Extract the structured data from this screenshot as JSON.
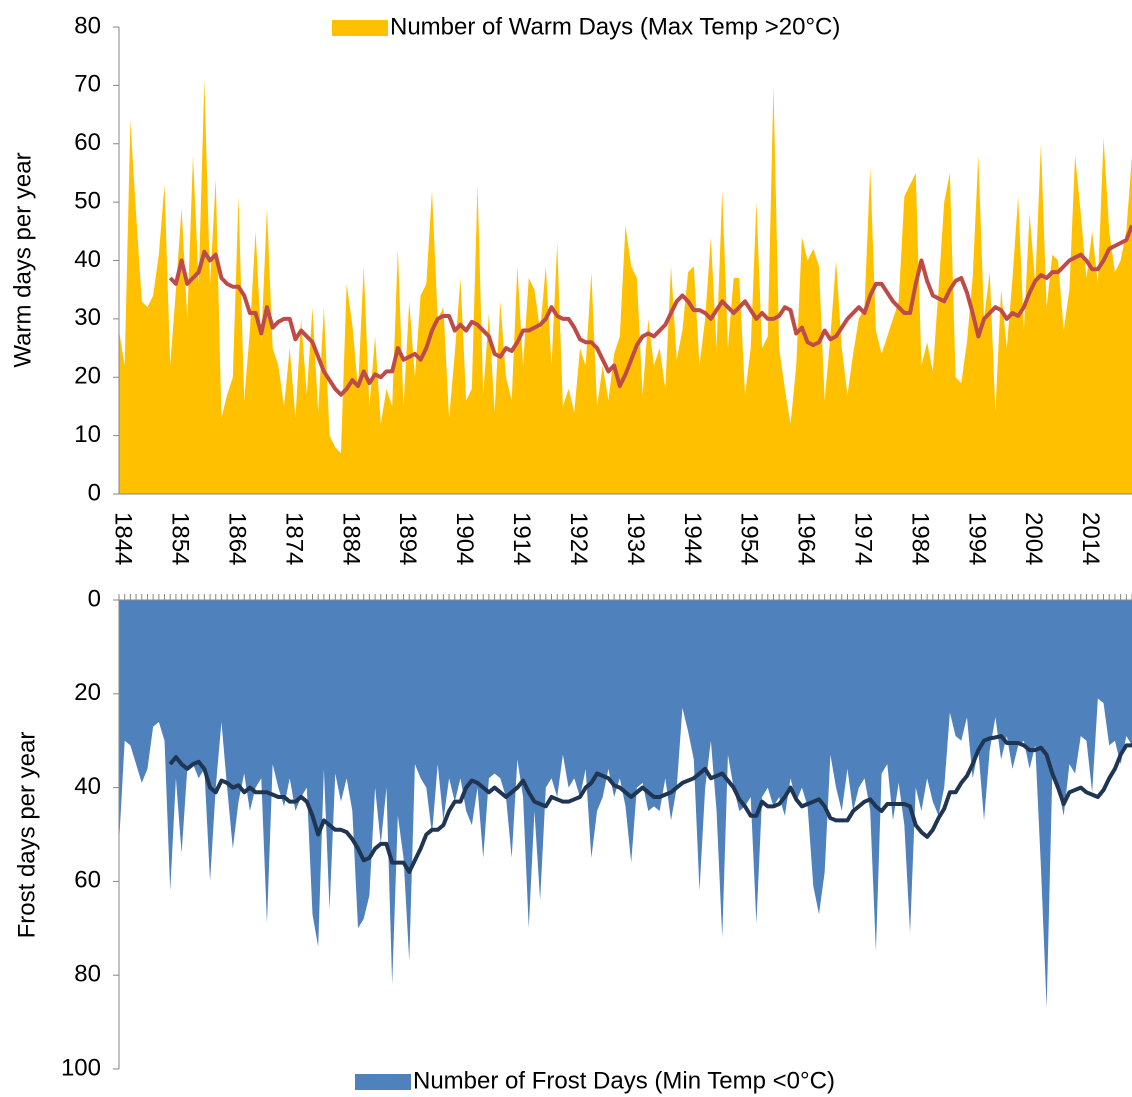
{
  "chart_data": [
    {
      "type": "area",
      "y_label": "Warm days per year",
      "legend": "top",
      "x": [
        1844,
        1845,
        1846,
        1847,
        1848,
        1849,
        1850,
        1851,
        1852,
        1853,
        1854,
        1855,
        1856,
        1857,
        1858,
        1859,
        1860,
        1861,
        1862,
        1863,
        1864,
        1865,
        1866,
        1867,
        1868,
        1869,
        1870,
        1871,
        1872,
        1873,
        1874,
        1875,
        1876,
        1877,
        1878,
        1879,
        1880,
        1881,
        1882,
        1883,
        1884,
        1885,
        1886,
        1887,
        1888,
        1889,
        1890,
        1891,
        1892,
        1893,
        1894,
        1895,
        1896,
        1897,
        1898,
        1899,
        1900,
        1901,
        1902,
        1903,
        1904,
        1905,
        1906,
        1907,
        1908,
        1909,
        1910,
        1911,
        1912,
        1913,
        1914,
        1915,
        1916,
        1917,
        1918,
        1919,
        1920,
        1921,
        1922,
        1923,
        1924,
        1925,
        1926,
        1927,
        1928,
        1929,
        1930,
        1931,
        1932,
        1933,
        1934,
        1935,
        1936,
        1937,
        1938,
        1939,
        1940,
        1941,
        1942,
        1943,
        1944,
        1945,
        1946,
        1947,
        1948,
        1949,
        1950,
        1951,
        1952,
        1953,
        1954,
        1955,
        1956,
        1957,
        1958,
        1959,
        1960,
        1961,
        1962,
        1963,
        1964,
        1965,
        1966,
        1967,
        1968,
        1969,
        1970,
        1971,
        1972,
        1973,
        1974,
        1975,
        1976,
        1977,
        1978,
        1979,
        1980,
        1981,
        1982,
        1983,
        1984,
        1985,
        1986,
        1987,
        1988,
        1989,
        1990,
        1991,
        1992,
        1993,
        1994,
        1995,
        1996,
        1997,
        1998,
        1999,
        2000,
        2001,
        2002,
        2003,
        2004,
        2005,
        2006,
        2007,
        2008,
        2009,
        2010,
        2011,
        2012,
        2013,
        2014,
        2015,
        2016,
        2017,
        2018,
        2019,
        2020,
        2021,
        2022
      ],
      "xlim": [
        1844,
        2022
      ],
      "xticks": [
        1844,
        1854,
        1864,
        1874,
        1884,
        1894,
        1904,
        1914,
        1924,
        1934,
        1944,
        1954,
        1964,
        1974,
        1984,
        1994,
        2004,
        2014
      ],
      "ylim": [
        0,
        80
      ],
      "yticks": [
        0,
        10,
        20,
        30,
        40,
        50,
        60,
        70,
        80
      ],
      "series": [
        {
          "name": "Number of Warm Days (Max Temp >20°C)",
          "type": "area",
          "color": "#ffc000",
          "values": [
            28,
            22,
            64,
            48,
            33,
            32,
            34,
            41,
            53,
            22,
            35,
            49,
            30,
            58,
            36,
            71,
            36,
            54,
            13,
            17,
            20,
            51,
            16,
            28,
            45,
            26,
            49,
            25,
            22,
            15,
            25,
            13,
            30,
            17,
            32,
            14,
            32,
            10,
            8,
            7,
            36,
            29,
            18,
            39,
            15,
            27,
            12,
            18,
            15,
            42,
            15,
            33,
            20,
            34,
            36,
            52,
            30,
            32,
            13,
            24,
            37,
            16,
            18,
            53,
            17,
            31,
            14,
            33,
            20,
            16,
            39,
            22,
            37,
            35,
            28,
            39,
            22,
            43,
            15,
            18,
            14,
            25,
            22,
            38,
            15,
            22,
            16,
            24,
            27,
            46,
            39,
            37,
            17,
            30,
            22,
            25,
            18,
            39,
            23,
            28,
            38,
            39,
            22,
            30,
            44,
            25,
            52,
            25,
            37,
            37,
            17,
            25,
            50,
            25,
            27,
            70,
            25,
            18,
            12,
            22,
            44,
            40,
            42,
            39,
            16,
            27,
            40,
            25,
            17,
            24,
            30,
            32,
            56,
            28,
            24,
            27,
            30,
            33,
            51,
            53,
            55,
            22,
            26,
            21,
            35,
            50,
            55,
            20,
            19,
            26,
            37,
            58,
            30,
            38,
            14,
            35,
            25,
            37,
            51,
            28,
            48,
            36,
            60,
            32,
            41,
            40,
            28,
            35,
            58,
            48,
            37,
            45,
            36,
            61,
            45,
            38,
            40,
            45,
            58
          ]
        },
        {
          "type": "line",
          "color": "#be4b48",
          "values": [
            null,
            null,
            null,
            null,
            null,
            null,
            null,
            null,
            null,
            37,
            36,
            40,
            36,
            37,
            38,
            41.5,
            40,
            41,
            37,
            36,
            35.5,
            35.5,
            34,
            31,
            31,
            27.5,
            32,
            28.5,
            29.5,
            30,
            30,
            26.5,
            28,
            27,
            26,
            23.5,
            21,
            19.5,
            18,
            17,
            18,
            19.5,
            18.5,
            21,
            19,
            20.5,
            20,
            21,
            21,
            25,
            23,
            23.5,
            24,
            23,
            25,
            28,
            30,
            30.5,
            30.5,
            28,
            29,
            28,
            29.5,
            29,
            28,
            27,
            24,
            23.5,
            25,
            24.5,
            26,
            28,
            28,
            28.5,
            29,
            30,
            32,
            30.5,
            30,
            30,
            28.5,
            26.5,
            26,
            26,
            25,
            23,
            21,
            22,
            18.5,
            20.5,
            23,
            25.5,
            27,
            27.5,
            27,
            28,
            29,
            31,
            33,
            34,
            33,
            31.5,
            31.5,
            31,
            30,
            31.5,
            33,
            32,
            31,
            32,
            33,
            31.5,
            30,
            31,
            30,
            30,
            30.5,
            32,
            31.5,
            27.5,
            28.5,
            26,
            25.5,
            26,
            28,
            26.5,
            27,
            28.5,
            30,
            31,
            32,
            31,
            34,
            36,
            36,
            34.5,
            33,
            32,
            31,
            31,
            36,
            40,
            36.5,
            34,
            33.5,
            33,
            35,
            36.5,
            37,
            34.5,
            31,
            27,
            30,
            31,
            32,
            31.5,
            30,
            31,
            30.5,
            32,
            34.5,
            36.5,
            37.5,
            37,
            38,
            38,
            39,
            40,
            40.5,
            41,
            40,
            38.5,
            38.5,
            40,
            42,
            42.5,
            43,
            43.5,
            46
          ]
        }
      ]
    },
    {
      "type": "area",
      "y_label": "Frost days per year",
      "legend": "bottom",
      "invert_y": true,
      "x_minor_ticks": true,
      "x": [
        1844,
        1845,
        1846,
        1847,
        1848,
        1849,
        1850,
        1851,
        1852,
        1853,
        1854,
        1855,
        1856,
        1857,
        1858,
        1859,
        1860,
        1861,
        1862,
        1863,
        1864,
        1865,
        1866,
        1867,
        1868,
        1869,
        1870,
        1871,
        1872,
        1873,
        1874,
        1875,
        1876,
        1877,
        1878,
        1879,
        1880,
        1881,
        1882,
        1883,
        1884,
        1885,
        1886,
        1887,
        1888,
        1889,
        1890,
        1891,
        1892,
        1893,
        1894,
        1895,
        1896,
        1897,
        1898,
        1899,
        1900,
        1901,
        1902,
        1903,
        1904,
        1905,
        1906,
        1907,
        1908,
        1909,
        1910,
        1911,
        1912,
        1913,
        1914,
        1915,
        1916,
        1917,
        1918,
        1919,
        1920,
        1921,
        1922,
        1923,
        1924,
        1925,
        1926,
        1927,
        1928,
        1929,
        1930,
        1931,
        1932,
        1933,
        1934,
        1935,
        1936,
        1937,
        1938,
        1939,
        1940,
        1941,
        1942,
        1943,
        1944,
        1945,
        1946,
        1947,
        1948,
        1949,
        1950,
        1951,
        1952,
        1953,
        1954,
        1955,
        1956,
        1957,
        1958,
        1959,
        1960,
        1961,
        1962,
        1963,
        1964,
        1965,
        1966,
        1967,
        1968,
        1969,
        1970,
        1971,
        1972,
        1973,
        1974,
        1975,
        1976,
        1977,
        1978,
        1979,
        1980,
        1981,
        1982,
        1983,
        1984,
        1985,
        1986,
        1987,
        1988,
        1989,
        1990,
        1991,
        1992,
        1993,
        1994,
        1995,
        1996,
        1997,
        1998,
        1999,
        2000,
        2001,
        2002,
        2003,
        2004,
        2005,
        2006,
        2007,
        2008,
        2009,
        2010,
        2011,
        2012,
        2013,
        2014,
        2015,
        2016,
        2017,
        2018,
        2019,
        2020,
        2021,
        2022
      ],
      "xlim": [
        1844,
        2022
      ],
      "ylim": [
        0,
        100
      ],
      "yticks": [
        0,
        20,
        40,
        60,
        80,
        100
      ],
      "series": [
        {
          "name": "Number of Frost Days (Min Temp <0°C)",
          "type": "area",
          "color": "#4f81bd",
          "values": [
            52,
            30,
            31,
            35,
            39,
            36,
            27,
            26,
            30,
            62,
            38,
            54,
            36,
            35,
            38,
            36,
            60,
            40,
            26,
            40,
            53,
            43,
            37,
            45,
            40,
            38,
            69,
            35,
            40,
            44,
            38,
            45,
            42,
            40,
            67,
            74,
            36,
            66,
            37,
            43,
            38,
            45,
            70,
            68,
            63,
            40,
            52,
            40,
            82,
            46,
            55,
            77,
            35,
            38,
            40,
            50,
            35,
            47,
            38,
            43,
            38,
            45,
            48,
            40,
            55,
            38,
            37,
            38,
            42,
            55,
            34,
            42,
            70,
            45,
            64,
            40,
            38,
            42,
            33,
            40,
            38,
            42,
            36,
            55,
            45,
            42,
            36,
            42,
            38,
            44,
            56,
            40,
            39,
            45,
            44,
            45,
            38,
            47,
            40,
            23,
            28,
            34,
            62,
            40,
            30,
            45,
            72,
            33,
            40,
            45,
            44,
            42,
            69,
            42,
            40,
            44,
            42,
            46,
            38,
            43,
            40,
            44,
            61,
            67,
            58,
            33,
            40,
            45,
            36,
            45,
            40,
            38,
            45,
            75,
            37,
            35,
            47,
            39,
            48,
            71,
            40,
            45,
            38,
            43,
            46,
            40,
            24,
            29,
            30,
            25,
            38,
            32,
            47,
            32,
            25,
            34,
            29,
            36,
            31,
            30,
            36,
            31,
            57,
            87,
            37,
            40,
            46,
            35,
            37,
            29,
            30,
            41,
            21,
            22,
            31,
            30,
            35,
            29,
            31
          ]
        },
        {
          "type": "line",
          "color": "#1f3552",
          "values": [
            null,
            null,
            null,
            null,
            null,
            null,
            null,
            null,
            null,
            35,
            33.5,
            35,
            36,
            35,
            34.5,
            36,
            40,
            41,
            38.5,
            39,
            40,
            39.5,
            41,
            40,
            41,
            41,
            41,
            41.5,
            42,
            42,
            43,
            43,
            42,
            43,
            46,
            50,
            47,
            48,
            49,
            49,
            49.5,
            51,
            53,
            55.5,
            55,
            53,
            52,
            52,
            56,
            56,
            56,
            58,
            55.5,
            53,
            50,
            49,
            49,
            48,
            45,
            43,
            43,
            40,
            38.5,
            39,
            40,
            41,
            40,
            41,
            42,
            41,
            40,
            38.5,
            41,
            43,
            43.5,
            44,
            42,
            42.5,
            43,
            43,
            42.5,
            42,
            40,
            39,
            37,
            37.5,
            38,
            39.5,
            40,
            41,
            42,
            41,
            40,
            41,
            42,
            42,
            41.5,
            41,
            40,
            39,
            38.5,
            38,
            37,
            36,
            38,
            37.5,
            37,
            38.5,
            40,
            42.5,
            44,
            46,
            46,
            43,
            44,
            44,
            43.5,
            42,
            40,
            42.5,
            44,
            43.5,
            43,
            42.5,
            44,
            46.5,
            47,
            47,
            47,
            45,
            44,
            43,
            42.5,
            44,
            45,
            43.5,
            43.5,
            43.5,
            43.5,
            44,
            48,
            49.5,
            50.5,
            49,
            46.5,
            44.5,
            41,
            41,
            39,
            37.5,
            35,
            32,
            30,
            29.5,
            29.3,
            29,
            30.5,
            30.5,
            30.5,
            31,
            32,
            32,
            31.5,
            33,
            37,
            40,
            43.5,
            41,
            40.5,
            40,
            41,
            41.5,
            42,
            40.5,
            38,
            36,
            33,
            31,
            31
          ]
        }
      ]
    }
  ]
}
